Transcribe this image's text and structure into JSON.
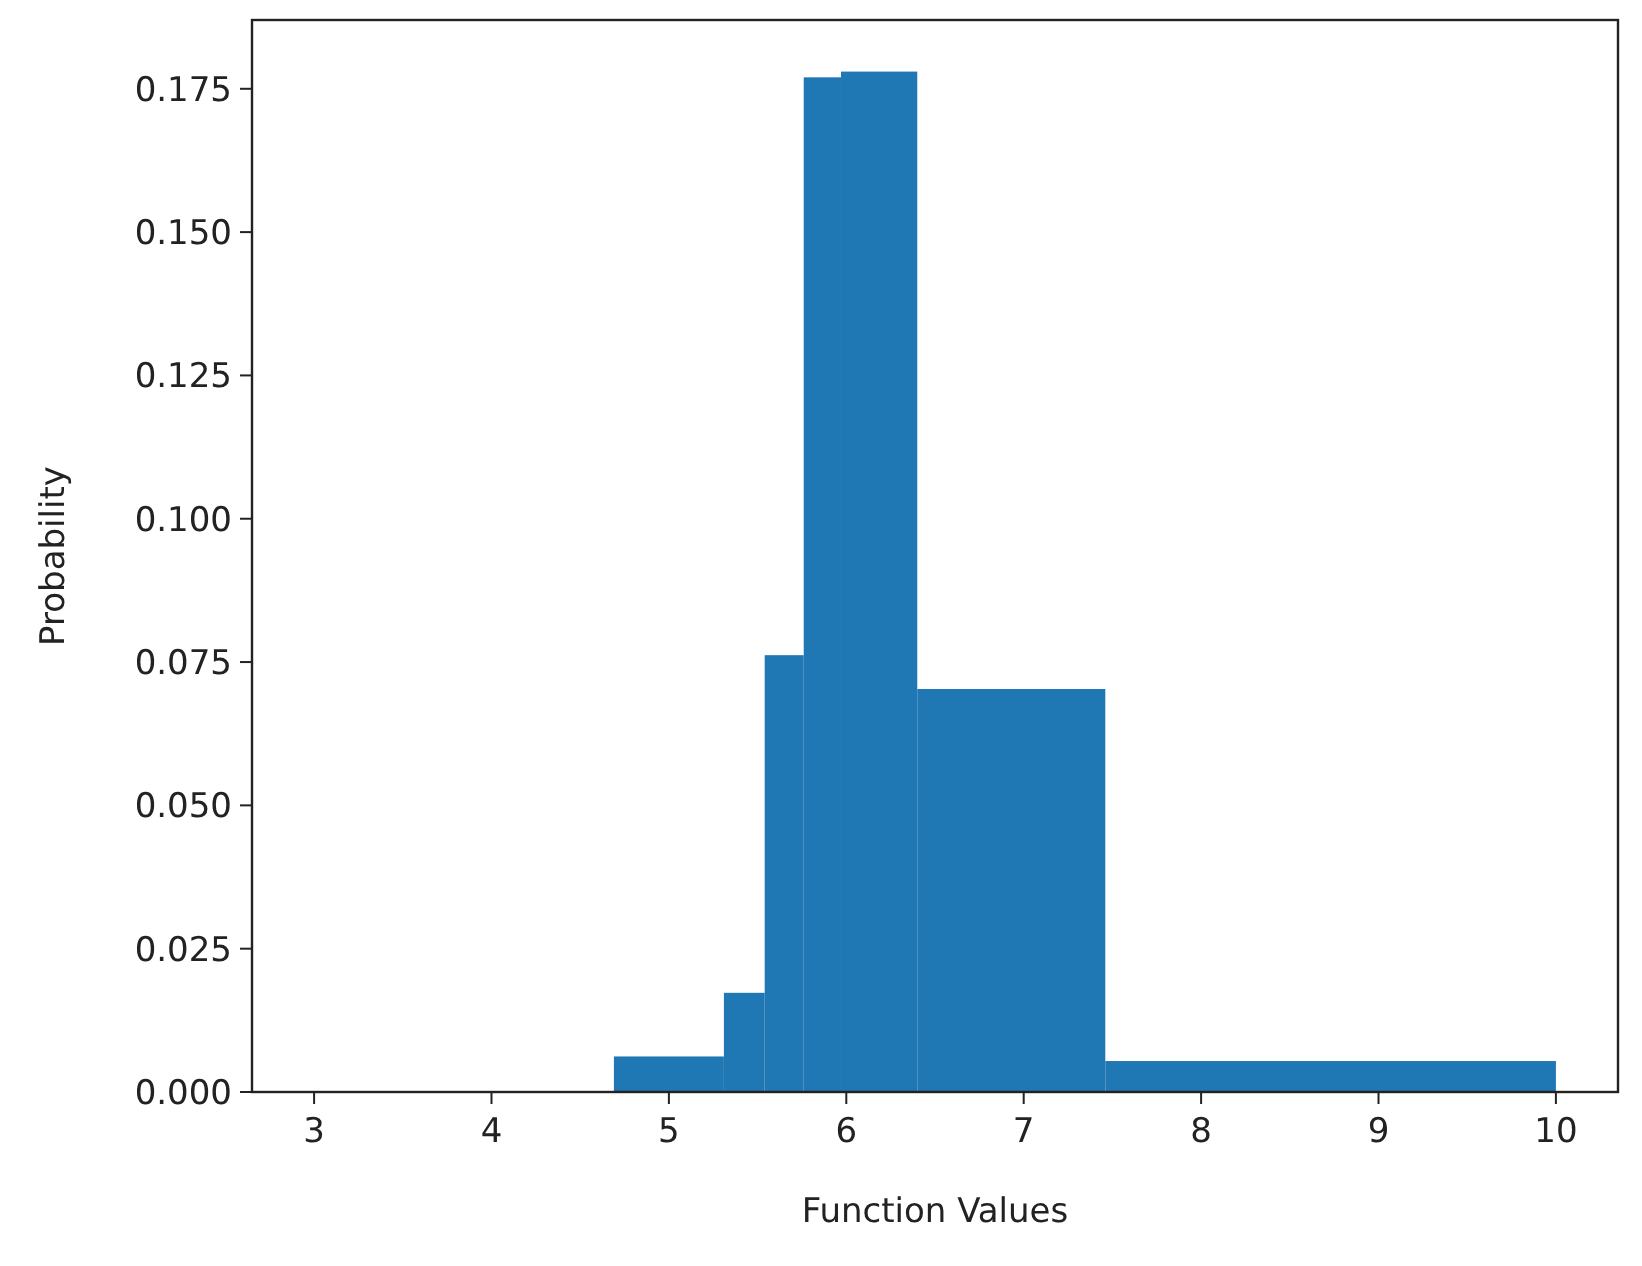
{
  "chart_data": {
    "type": "histogram",
    "xlabel": "Function Values",
    "ylabel": "Probability",
    "bins": [
      4.69,
      5.31,
      5.54,
      5.76,
      5.97,
      6.4,
      7.46,
      10
    ],
    "values": [
      0.0062,
      0.0173,
      0.0762,
      0.177,
      0.178,
      0.0703,
      0.0054
    ],
    "color": "#1f77b4",
    "xlim": [
      2.65,
      10.35
    ],
    "xticks": [
      3,
      4,
      5,
      6,
      7,
      8,
      9,
      10
    ],
    "ylim": [
      0,
      0.187
    ],
    "yticks": [
      {
        "value": 0,
        "label": "0.000"
      },
      {
        "value": 0.025,
        "label": "0.025"
      },
      {
        "value": 0.05,
        "label": "0.050"
      },
      {
        "value": 0.075,
        "label": "0.075"
      },
      {
        "value": 0.1,
        "label": "0.100"
      },
      {
        "value": 0.125,
        "label": "0.125"
      },
      {
        "value": 0.15,
        "label": "0.150"
      },
      {
        "value": 0.175,
        "label": "0.175"
      }
    ],
    "grid": false
  }
}
